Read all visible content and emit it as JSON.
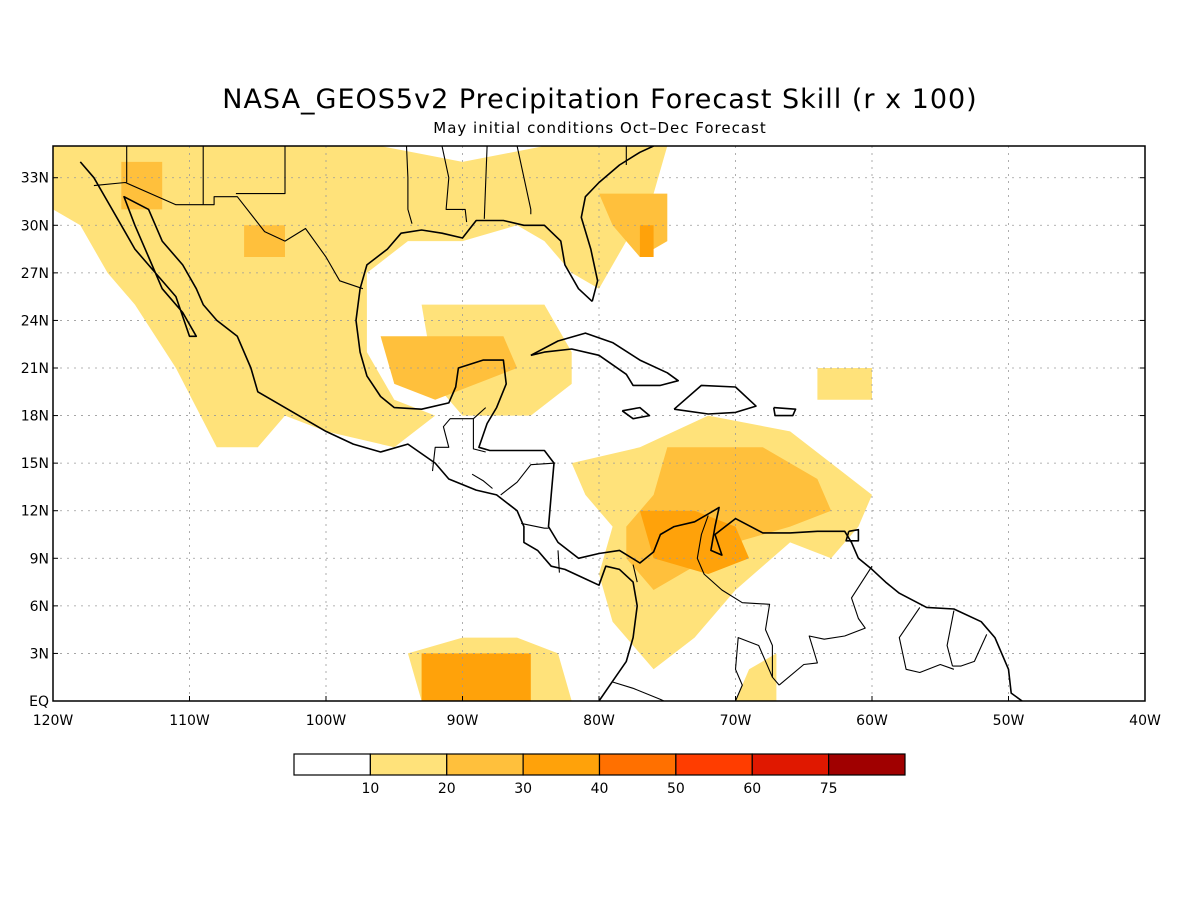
{
  "title": "NASA_GEOS5v2 Precipitation Forecast Skill (r x 100)",
  "subtitle": "May initial conditions  Oct–Dec Forecast",
  "map": {
    "lon_range": [
      -120,
      -40
    ],
    "lat_range": [
      0,
      35
    ],
    "lon_ticks": [
      {
        "value": -120,
        "label": "120W"
      },
      {
        "value": -110,
        "label": "110W"
      },
      {
        "value": -100,
        "label": "100W"
      },
      {
        "value": -90,
        "label": "90W"
      },
      {
        "value": -80,
        "label": "80W"
      },
      {
        "value": -70,
        "label": "70W"
      },
      {
        "value": -60,
        "label": "60W"
      },
      {
        "value": -50,
        "label": "50W"
      },
      {
        "value": -40,
        "label": "40W"
      }
    ],
    "lat_ticks": [
      {
        "value": 0,
        "label": "EQ"
      },
      {
        "value": 3,
        "label": "3N"
      },
      {
        "value": 6,
        "label": "6N"
      },
      {
        "value": 9,
        "label": "9N"
      },
      {
        "value": 12,
        "label": "12N"
      },
      {
        "value": 15,
        "label": "15N"
      },
      {
        "value": 18,
        "label": "18N"
      },
      {
        "value": 21,
        "label": "21N"
      },
      {
        "value": 24,
        "label": "24N"
      },
      {
        "value": 27,
        "label": "27N"
      },
      {
        "value": 30,
        "label": "30N"
      },
      {
        "value": 33,
        "label": "33N"
      }
    ],
    "grid": true
  },
  "colorbar": {
    "colors": [
      "#ffffff",
      "#ffe27a",
      "#ffc03c",
      "#ffa20a",
      "#ff7000",
      "#ff3d00",
      "#e01800",
      "#a00000"
    ],
    "labels": [
      "10",
      "20",
      "30",
      "40",
      "50",
      "60",
      "75"
    ]
  },
  "shading": [
    {
      "level": 1,
      "points": [
        [
          -120,
          35
        ],
        [
          -96,
          35
        ],
        [
          -90,
          34
        ],
        [
          -84,
          35
        ],
        [
          -75,
          35
        ],
        [
          -76,
          32
        ],
        [
          -78,
          29
        ],
        [
          -80,
          26
        ],
        [
          -82,
          27
        ],
        [
          -84,
          29
        ],
        [
          -86,
          30
        ],
        [
          -90,
          29
        ],
        [
          -94,
          29
        ],
        [
          -97,
          27
        ],
        [
          -97,
          22
        ],
        [
          -95,
          19
        ],
        [
          -92,
          18
        ],
        [
          -95,
          16
        ],
        [
          -100,
          17
        ],
        [
          -103,
          18
        ],
        [
          -105,
          16
        ],
        [
          -108,
          16
        ],
        [
          -111,
          21
        ],
        [
          -114,
          25
        ],
        [
          -116,
          27
        ],
        [
          -118,
          30
        ],
        [
          -120,
          31
        ]
      ]
    },
    {
      "level": 1,
      "points": [
        [
          -93,
          25
        ],
        [
          -84,
          25
        ],
        [
          -82,
          22
        ],
        [
          -82,
          20
        ],
        [
          -85,
          18
        ],
        [
          -90,
          18
        ],
        [
          -92,
          20
        ]
      ]
    },
    {
      "level": 1,
      "points": [
        [
          -82,
          15
        ],
        [
          -77,
          16
        ],
        [
          -72,
          18
        ],
        [
          -66,
          17
        ],
        [
          -63,
          15
        ],
        [
          -60,
          13
        ],
        [
          -61,
          11
        ],
        [
          -63,
          9
        ],
        [
          -66,
          10
        ],
        [
          -70,
          7
        ],
        [
          -73,
          4
        ],
        [
          -76,
          2
        ],
        [
          -79,
          5
        ],
        [
          -80,
          8
        ],
        [
          -79,
          11
        ],
        [
          -81,
          13
        ]
      ]
    },
    {
      "level": 1,
      "points": [
        [
          -94,
          3
        ],
        [
          -90,
          4
        ],
        [
          -86,
          4
        ],
        [
          -83,
          3
        ],
        [
          -82,
          0
        ],
        [
          -93,
          0
        ]
      ]
    },
    {
      "level": 1,
      "points": [
        [
          -64,
          21
        ],
        [
          -60,
          21
        ],
        [
          -60,
          19
        ],
        [
          -64,
          19
        ]
      ]
    },
    {
      "level": 1,
      "points": [
        [
          -70,
          0
        ],
        [
          -67,
          0
        ],
        [
          -67,
          3
        ],
        [
          -69,
          2
        ]
      ]
    },
    {
      "level": 2,
      "points": [
        [
          -75,
          16
        ],
        [
          -68,
          16
        ],
        [
          -64,
          14
        ],
        [
          -63,
          12
        ],
        [
          -66,
          11
        ],
        [
          -70,
          10
        ],
        [
          -74,
          8
        ],
        [
          -76,
          7
        ],
        [
          -78,
          9
        ],
        [
          -78,
          11
        ],
        [
          -76,
          13
        ]
      ]
    },
    {
      "level": 2,
      "points": [
        [
          -96,
          23
        ],
        [
          -87,
          23
        ],
        [
          -86,
          21
        ],
        [
          -89,
          20
        ],
        [
          -92,
          19
        ],
        [
          -95,
          20
        ]
      ]
    },
    {
      "level": 2,
      "points": [
        [
          -80,
          32
        ],
        [
          -75,
          32
        ],
        [
          -75,
          29
        ],
        [
          -77,
          28
        ],
        [
          -79,
          30
        ]
      ]
    },
    {
      "level": 2,
      "points": [
        [
          -106,
          30
        ],
        [
          -103,
          30
        ],
        [
          -103,
          28
        ],
        [
          -106,
          28
        ]
      ]
    },
    {
      "level": 2,
      "points": [
        [
          -115,
          34
        ],
        [
          -112,
          34
        ],
        [
          -112,
          31
        ],
        [
          -115,
          31
        ]
      ]
    },
    {
      "level": 3,
      "points": [
        [
          -93,
          3
        ],
        [
          -85,
          3
        ],
        [
          -85,
          0
        ],
        [
          -93,
          0
        ]
      ]
    },
    {
      "level": 3,
      "points": [
        [
          -77,
          12
        ],
        [
          -73,
          12
        ],
        [
          -70,
          11
        ],
        [
          -69,
          9
        ],
        [
          -72,
          8
        ],
        [
          -76,
          9
        ]
      ]
    },
    {
      "level": 3,
      "points": [
        [
          -77,
          30
        ],
        [
          -76,
          30
        ],
        [
          -76,
          28
        ],
        [
          -77,
          28
        ]
      ]
    }
  ],
  "coastlines": [
    [
      [
        -118,
        34
      ],
      [
        -117,
        33
      ],
      [
        -116,
        31.5
      ],
      [
        -115,
        30
      ],
      [
        -114,
        28.5
      ],
      [
        -112.5,
        27
      ],
      [
        -111,
        25.5
      ],
      [
        -110,
        23
      ],
      [
        -109.5,
        23
      ],
      [
        -110.5,
        24.5
      ],
      [
        -112,
        26
      ],
      [
        -113,
        28
      ],
      [
        -114,
        30
      ],
      [
        -114.8,
        31.8
      ],
      [
        -113,
        31
      ],
      [
        -112,
        29
      ],
      [
        -110.5,
        27.5
      ],
      [
        -109.5,
        26
      ],
      [
        -109,
        25
      ],
      [
        -108,
        24
      ],
      [
        -106.5,
        23
      ],
      [
        -105.5,
        21
      ],
      [
        -105,
        19.5
      ],
      [
        -104,
        19
      ],
      [
        -102,
        18
      ],
      [
        -100,
        17
      ],
      [
        -98,
        16.2
      ],
      [
        -96,
        15.7
      ],
      [
        -94,
        16.2
      ],
      [
        -92,
        15
      ],
      [
        -91,
        14
      ],
      [
        -89,
        13.3
      ],
      [
        -87.5,
        13
      ],
      [
        -86,
        12
      ],
      [
        -85.5,
        11
      ],
      [
        -85.5,
        10
      ],
      [
        -84.5,
        9.5
      ],
      [
        -83.5,
        8.5
      ],
      [
        -82.5,
        8.3
      ],
      [
        -81,
        7.7
      ],
      [
        -80,
        7.3
      ],
      [
        -79.5,
        8.5
      ],
      [
        -78.5,
        8.3
      ],
      [
        -77.5,
        7.5
      ],
      [
        -77.2,
        6
      ],
      [
        -77.5,
        4
      ],
      [
        -78,
        2.5
      ],
      [
        -78.8,
        1.5
      ],
      [
        -80,
        0
      ]
    ],
    [
      [
        -80.5,
        25.2
      ],
      [
        -81.5,
        26
      ],
      [
        -82.5,
        27.5
      ],
      [
        -82.8,
        29
      ],
      [
        -84,
        30
      ],
      [
        -85.5,
        30
      ],
      [
        -87,
        30.3
      ],
      [
        -89,
        30.3
      ],
      [
        -90,
        29.2
      ],
      [
        -91.5,
        29.5
      ],
      [
        -93,
        29.7
      ],
      [
        -94.5,
        29.5
      ],
      [
        -95.5,
        28.5
      ],
      [
        -97,
        27.5
      ],
      [
        -97.5,
        26
      ],
      [
        -97.8,
        24
      ],
      [
        -97.5,
        22
      ],
      [
        -97,
        20.5
      ],
      [
        -96,
        19.2
      ],
      [
        -95,
        18.5
      ],
      [
        -93,
        18.4
      ],
      [
        -91,
        18.8
      ],
      [
        -90.5,
        19.8
      ],
      [
        -90.3,
        21
      ],
      [
        -88.5,
        21.5
      ],
      [
        -87,
        21.5
      ],
      [
        -86.8,
        20
      ],
      [
        -87.5,
        18.5
      ],
      [
        -88.2,
        17.5
      ],
      [
        -88.8,
        16
      ],
      [
        -88,
        15.8
      ],
      [
        -86,
        15.8
      ],
      [
        -84,
        15.8
      ],
      [
        -83.3,
        15
      ],
      [
        -83.5,
        13
      ],
      [
        -83.7,
        11
      ],
      [
        -83,
        10
      ],
      [
        -81.5,
        9
      ],
      [
        -80,
        9.3
      ],
      [
        -78.5,
        9.5
      ],
      [
        -77,
        8.7
      ],
      [
        -76,
        9.4
      ],
      [
        -75.5,
        10.5
      ],
      [
        -74.5,
        11
      ],
      [
        -73,
        11.3
      ],
      [
        -72,
        11.8
      ],
      [
        -71.2,
        12.2
      ],
      [
        -71.5,
        11
      ],
      [
        -71.8,
        9.5
      ],
      [
        -71,
        9.2
      ],
      [
        -71.5,
        10.5
      ],
      [
        -70,
        11.5
      ],
      [
        -68,
        10.6
      ],
      [
        -66,
        10.6
      ],
      [
        -64,
        10.7
      ],
      [
        -62,
        10.7
      ],
      [
        -61.5,
        10
      ],
      [
        -61,
        9
      ],
      [
        -60,
        8.3
      ],
      [
        -59,
        7.5
      ],
      [
        -58,
        6.8
      ],
      [
        -56,
        5.9
      ],
      [
        -54,
        5.8
      ],
      [
        -52,
        5
      ],
      [
        -51,
        4
      ],
      [
        -50,
        2
      ],
      [
        -49.8,
        0.5
      ],
      [
        -49,
        0
      ]
    ],
    [
      [
        -80.5,
        25.2
      ],
      [
        -80.1,
        26.5
      ],
      [
        -80.6,
        28.5
      ],
      [
        -81.3,
        30.5
      ],
      [
        -81,
        31.8
      ],
      [
        -80,
        32.7
      ],
      [
        -78.5,
        33.8
      ],
      [
        -77,
        34.6
      ],
      [
        -76,
        35
      ]
    ],
    [
      [
        -85,
        21.8
      ],
      [
        -83,
        22.7
      ],
      [
        -81,
        23.2
      ],
      [
        -79,
        22.6
      ],
      [
        -77,
        21.5
      ],
      [
        -75,
        20.7
      ],
      [
        -74.2,
        20.2
      ],
      [
        -75.5,
        19.9
      ],
      [
        -77.5,
        19.9
      ],
      [
        -78,
        20.6
      ],
      [
        -80,
        21.8
      ],
      [
        -82,
        22.2
      ],
      [
        -84,
        22
      ],
      [
        -85,
        21.8
      ]
    ],
    [
      [
        -74.5,
        18.4
      ],
      [
        -72.5,
        19.9
      ],
      [
        -70,
        19.8
      ],
      [
        -68.5,
        18.6
      ],
      [
        -70,
        18.2
      ],
      [
        -72,
        18.1
      ],
      [
        -74.5,
        18.4
      ]
    ],
    [
      [
        -78.3,
        18.3
      ],
      [
        -77,
        18.5
      ],
      [
        -76.3,
        18
      ],
      [
        -77.5,
        17.8
      ],
      [
        -78.3,
        18.3
      ]
    ],
    [
      [
        -67.2,
        18.5
      ],
      [
        -65.6,
        18.4
      ],
      [
        -65.8,
        18
      ],
      [
        -67.1,
        18
      ],
      [
        -67.2,
        18.5
      ]
    ],
    [
      [
        -61.7,
        10.7
      ],
      [
        -61,
        10.8
      ],
      [
        -61,
        10.1
      ],
      [
        -61.9,
        10.1
      ],
      [
        -61.7,
        10.7
      ]
    ]
  ],
  "borders": [
    [
      [
        -117,
        32.5
      ],
      [
        -114.7,
        32.7
      ],
      [
        -111,
        31.3
      ],
      [
        -108.2,
        31.3
      ],
      [
        -108.2,
        31.8
      ],
      [
        -106.5,
        31.8
      ],
      [
        -104.5,
        29.6
      ],
      [
        -103,
        29
      ],
      [
        -101.5,
        29.8
      ],
      [
        -100,
        28
      ],
      [
        -99,
        26.5
      ],
      [
        -97.3,
        26
      ]
    ],
    [
      [
        -92.2,
        14.5
      ],
      [
        -92,
        16
      ],
      [
        -91,
        16
      ],
      [
        -91.4,
        17.3
      ],
      [
        -90.9,
        17.8
      ],
      [
        -89.2,
        17.8
      ],
      [
        -88.3,
        18.5
      ]
    ],
    [
      [
        -89.2,
        17.8
      ],
      [
        -89.2,
        15.9
      ],
      [
        -88.3,
        15.7
      ]
    ],
    [
      [
        -89.3,
        14.3
      ],
      [
        -88.5,
        13.9
      ],
      [
        -87.8,
        13.4
      ]
    ],
    [
      [
        -87.2,
        13
      ],
      [
        -86,
        13.8
      ],
      [
        -85,
        14.9
      ],
      [
        -83.2,
        15
      ]
    ],
    [
      [
        -85.7,
        11.2
      ],
      [
        -84,
        10.9
      ],
      [
        -83.7,
        10.9
      ]
    ],
    [
      [
        -83,
        9.5
      ],
      [
        -82.9,
        8.1
      ]
    ],
    [
      [
        -77.5,
        8.6
      ],
      [
        -77.2,
        7.5
      ]
    ],
    [
      [
        -72,
        11.7
      ],
      [
        -72.5,
        10.5
      ],
      [
        -72.8,
        9
      ],
      [
        -72.3,
        8
      ],
      [
        -71,
        7
      ],
      [
        -69.5,
        6.2
      ],
      [
        -67.5,
        6.1
      ],
      [
        -67.8,
        4.5
      ],
      [
        -67.3,
        3.5
      ],
      [
        -67.3,
        1.5
      ],
      [
        -66.8,
        1
      ]
    ],
    [
      [
        -60,
        8.5
      ],
      [
        -61.5,
        6.5
      ],
      [
        -61,
        5.2
      ],
      [
        -60.5,
        4.6
      ],
      [
        -62,
        4.1
      ],
      [
        -63.5,
        3.9
      ],
      [
        -64.6,
        4.1
      ],
      [
        -64,
        2.4
      ],
      [
        -65,
        2.3
      ],
      [
        -66.8,
        1
      ]
    ],
    [
      [
        -56.5,
        5.9
      ],
      [
        -58,
        4
      ],
      [
        -57.5,
        2
      ],
      [
        -56.5,
        1.8
      ],
      [
        -55,
        2.3
      ],
      [
        -54,
        2
      ]
    ],
    [
      [
        -54,
        5.7
      ],
      [
        -54.5,
        3.5
      ],
      [
        -54.1,
        2.2
      ]
    ],
    [
      [
        -51.6,
        4.2
      ],
      [
        -52.5,
        2.5
      ],
      [
        -53.5,
        2.2
      ],
      [
        -54.1,
        2.2
      ]
    ],
    [
      [
        -79,
        1.2
      ],
      [
        -77.5,
        0.8
      ],
      [
        -75.5,
        0.1
      ],
      [
        -75,
        -0.1
      ]
    ],
    [
      [
        -70,
        0
      ],
      [
        -69.5,
        1
      ],
      [
        -70,
        2
      ],
      [
        -69.8,
        4
      ],
      [
        -68.3,
        3.5
      ],
      [
        -67.3,
        1.5
      ]
    ],
    [
      [
        -78,
        35
      ],
      [
        -78,
        33.8
      ]
    ],
    [
      [
        -86,
        35
      ],
      [
        -85,
        31
      ],
      [
        -85,
        30.7
      ]
    ],
    [
      [
        -88.2,
        35
      ],
      [
        -88.4,
        30.4
      ]
    ],
    [
      [
        -91.5,
        35
      ],
      [
        -91,
        33
      ],
      [
        -91.2,
        31
      ],
      [
        -89.8,
        31
      ],
      [
        -89.7,
        30.2
      ]
    ],
    [
      [
        -94.1,
        35
      ],
      [
        -94,
        33
      ],
      [
        -94,
        31
      ],
      [
        -93.7,
        30.1
      ]
    ],
    [
      [
        -103,
        35
      ],
      [
        -103,
        32
      ],
      [
        -106.6,
        32
      ]
    ],
    [
      [
        -109,
        35
      ],
      [
        -109,
        31.3
      ]
    ],
    [
      [
        -114.6,
        35
      ],
      [
        -114.6,
        32.7
      ]
    ]
  ]
}
